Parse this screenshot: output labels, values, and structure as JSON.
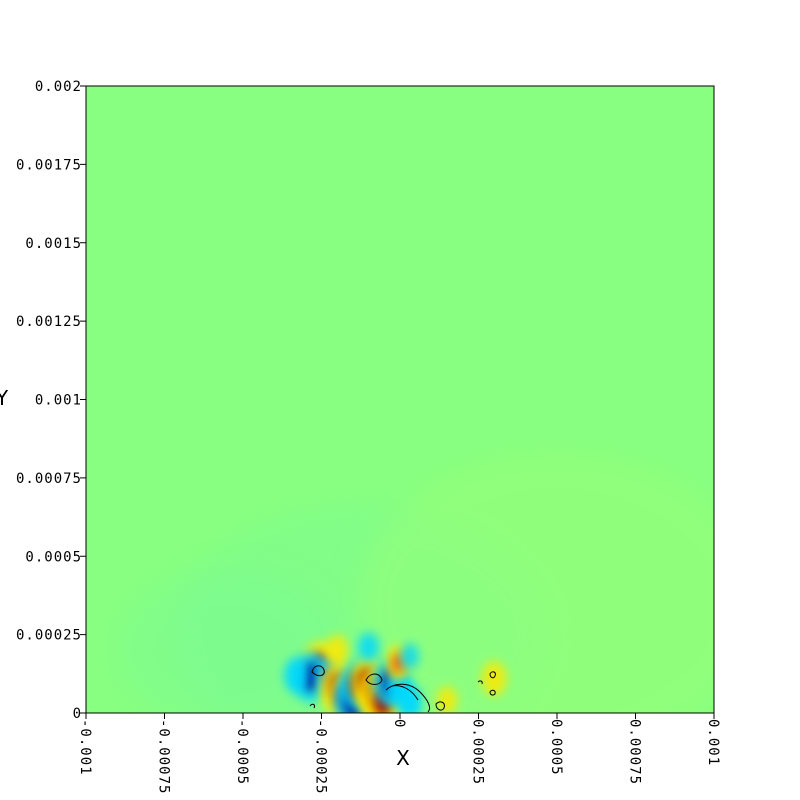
{
  "chart_data": {
    "type": "heatmap",
    "title": "",
    "xlabel": "X",
    "ylabel": "Y",
    "xlim": [
      -0.001,
      0.001
    ],
    "ylim": [
      0,
      0.002
    ],
    "x_ticks": [
      -0.001,
      -0.00075,
      -0.0005,
      -0.00025,
      0,
      0.00025,
      0.0005,
      0.00075,
      0.001
    ],
    "x_tick_labels": [
      "-0.001",
      "-0.00075",
      "-0.0005",
      "-0.00025",
      "0",
      "0.00025",
      "0.0005",
      "0.00075",
      "0.001"
    ],
    "y_ticks": [
      0,
      0.00025,
      0.0005,
      0.00075,
      0.001,
      0.00125,
      0.0015,
      0.00175,
      0.002
    ],
    "y_tick_labels": [
      "0",
      "0.00025",
      "0.0005",
      "0.00075",
      "0.001",
      "0.00125",
      "0.0015",
      "0.00175",
      "0.002"
    ],
    "background_color": "#88ff80",
    "colormap": [
      "#00008a",
      "#0050ff",
      "#00d8ff",
      "#88ff80",
      "#ffe800",
      "#ff5000",
      "#a00000"
    ],
    "features": [
      {
        "x": -0.000255,
        "y": 0.000145,
        "value": 1.0
      },
      {
        "x": -0.000285,
        "y": 0.000115,
        "value": -0.95
      },
      {
        "x": -0.000225,
        "y": 0.000115,
        "value": -0.6
      },
      {
        "x": -0.000195,
        "y": 8e-05,
        "value": 1.0
      },
      {
        "x": -0.000175,
        "y": 5e-05,
        "value": 0.9
      },
      {
        "x": -0.00015,
        "y": 3e-05,
        "value": -1.0
      },
      {
        "x": -0.000135,
        "y": 9e-05,
        "value": -0.95
      },
      {
        "x": -0.000105,
        "y": 0.0001,
        "value": 0.9
      },
      {
        "x": -7.5e-05,
        "y": 6e-05,
        "value": 1.0
      },
      {
        "x": -5.5e-05,
        "y": 3.5e-05,
        "value": 1.0
      },
      {
        "x": -3e-05,
        "y": 0.0001,
        "value": -0.9
      },
      {
        "x": -5e-06,
        "y": 8.5e-05,
        "value": -0.5
      },
      {
        "x": -5e-06,
        "y": 0.00016,
        "value": 0.5
      },
      {
        "x": 3e-05,
        "y": 3.5e-05,
        "value": -0.5
      },
      {
        "x": 0.00015,
        "y": 4e-05,
        "value": 0.25
      },
      {
        "x": 0.0003,
        "y": 0.00011,
        "value": 0.45
      },
      {
        "x": -0.0002,
        "y": 0.0002,
        "value": 0.35
      },
      {
        "x": -0.0001,
        "y": 0.00021,
        "value": -0.3
      },
      {
        "x": -0.00033,
        "y": 0.00012,
        "value": -0.45
      },
      {
        "x": 3e-05,
        "y": 0.00018,
        "value": -0.2
      }
    ]
  }
}
